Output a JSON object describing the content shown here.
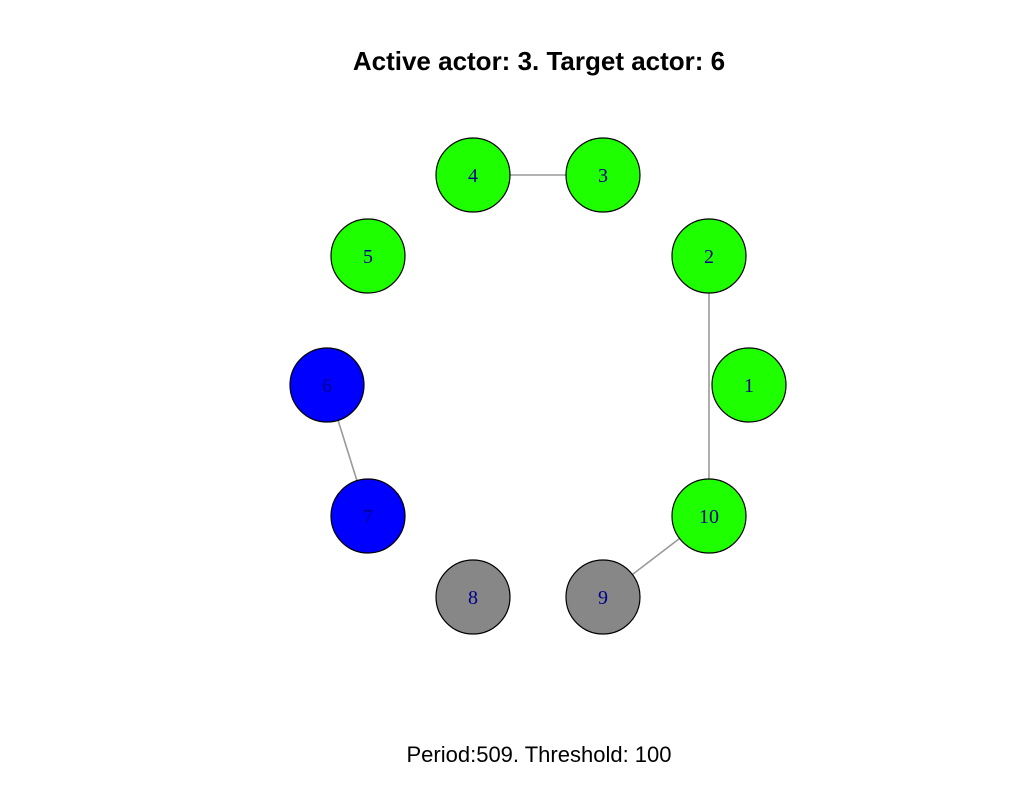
{
  "title": "Active actor: 3. Target actor: 6",
  "caption": "Period:509. Threshold: 100",
  "colors": {
    "green": "#1eff00",
    "blue": "#0000ff",
    "gray": "#878787",
    "edge": "#9a9a9a",
    "label": "#00008b"
  },
  "nodes": [
    {
      "id": "1",
      "color": "green"
    },
    {
      "id": "2",
      "color": "green"
    },
    {
      "id": "3",
      "color": "green"
    },
    {
      "id": "4",
      "color": "green"
    },
    {
      "id": "5",
      "color": "green"
    },
    {
      "id": "6",
      "color": "blue"
    },
    {
      "id": "7",
      "color": "blue"
    },
    {
      "id": "8",
      "color": "gray"
    },
    {
      "id": "9",
      "color": "gray"
    },
    {
      "id": "10",
      "color": "green"
    }
  ],
  "edges": [
    {
      "from": "4",
      "to": "3"
    },
    {
      "from": "2",
      "to": "10"
    },
    {
      "from": "6",
      "to": "7"
    },
    {
      "from": "10",
      "to": "9"
    }
  ]
}
